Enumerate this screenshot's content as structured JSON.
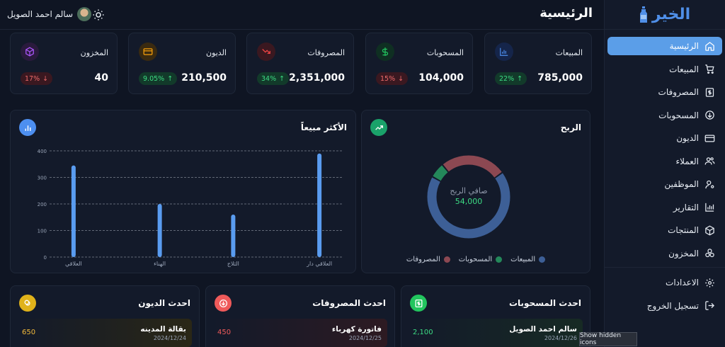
{
  "brand": {
    "name": "الخير"
  },
  "header": {
    "title": "الرئيسية",
    "user_name": "سالم احمد الصويل"
  },
  "nav": {
    "items": [
      {
        "label": "الرئيسية",
        "icon": "home-icon",
        "active": true
      },
      {
        "label": "المبيعات",
        "icon": "cart-icon"
      },
      {
        "label": "المصروفات",
        "icon": "dollar-doc-icon"
      },
      {
        "label": "المسحوبات",
        "icon": "arrow-circle-icon"
      },
      {
        "label": "الديون",
        "icon": "credit-card-icon"
      },
      {
        "label": "العملاء",
        "icon": "users-icon"
      },
      {
        "label": "الموظفين",
        "icon": "user-gear-icon"
      },
      {
        "label": "التقارير",
        "icon": "bar-chart-icon"
      },
      {
        "label": "المنتجات",
        "icon": "box-icon"
      },
      {
        "label": "المخزون",
        "icon": "stock-icon"
      }
    ],
    "bottom": [
      {
        "label": "الاعدادات",
        "icon": "gear-icon"
      },
      {
        "label": "تسجيل الخروج",
        "icon": "logout-icon"
      }
    ]
  },
  "stats": [
    {
      "label": "المبيعات",
      "value": "785,000",
      "change": "22%",
      "trend": "up",
      "icon": "bar-chart-icon",
      "color": "#3b82f6"
    },
    {
      "label": "المسحوبات",
      "value": "104,000",
      "change": "15%",
      "trend": "down",
      "icon": "dollar-icon",
      "color": "#22c55e"
    },
    {
      "label": "المصروفات",
      "value": "2,351,000",
      "change": "34%",
      "trend": "up",
      "icon": "trend-down-icon",
      "color": "#ef4444"
    },
    {
      "label": "الديون",
      "value": "210,500",
      "change": "9.05%",
      "trend": "up",
      "icon": "card-icon",
      "color": "#f59e0b"
    },
    {
      "label": "المخزون",
      "value": "40",
      "change": "17%",
      "trend": "down",
      "icon": "cube-icon",
      "color": "#a855f7"
    }
  ],
  "profit": {
    "title": "الربح",
    "center_label": "صافي الربح",
    "center_value": "54,000",
    "legend": [
      {
        "label": "المبيعات",
        "color": "#3d5f96"
      },
      {
        "label": "المسحوبات",
        "color": "#24885a"
      },
      {
        "label": "المصروفات",
        "color": "#8c4852"
      }
    ]
  },
  "top_selling": {
    "title": "الأكثر مبيعاً"
  },
  "chart_data": [
    {
      "type": "pie",
      "title": "الربح",
      "labels": [
        "المبيعات",
        "المسحوبات",
        "المصروفات"
      ],
      "values": [
        68,
        6,
        26
      ],
      "colors": [
        "#3d5f96",
        "#24885a",
        "#8c4852"
      ],
      "donut": true
    },
    {
      "type": "bar",
      "title": "الأكثر مبيعاً",
      "categories": [
        "العلاقي دار",
        "الثلاج",
        "الهناء",
        "العلاقي"
      ],
      "tick_labels": [
        "العلاقي دار",
        "الثلاج",
        "الهناء",
        "العلاقي"
      ],
      "values": [
        390,
        160,
        200,
        345
      ],
      "yticks": [
        "0",
        "100",
        "200",
        "300",
        "400"
      ],
      "ylim": [
        0,
        400
      ],
      "grid": true,
      "color": "#5a9cf0"
    }
  ],
  "recent": [
    {
      "title": "احدث المسحوبات",
      "icon": "cash-icon",
      "color": "#22c55e",
      "row": {
        "name": "سالم احمد الصويل",
        "date": "2024/12/26",
        "amount": "2,100",
        "amount_color": "#3ddc84"
      }
    },
    {
      "title": "احدث المصروفات",
      "icon": "arrow-down-circle-icon",
      "color": "#ef5a5a",
      "row": {
        "name": "فاتورة كهرباء",
        "date": "2024/12/25",
        "amount": "450",
        "amount_color": "#ef5a5a"
      }
    },
    {
      "title": "احدث الديون",
      "icon": "coins-icon",
      "color": "#e0b21a",
      "row": {
        "name": "بقالة المدينه",
        "date": "2024/12/24",
        "amount": "650",
        "amount_color": "#f2b93b"
      }
    }
  ],
  "tooltip": "Show hidden icons"
}
